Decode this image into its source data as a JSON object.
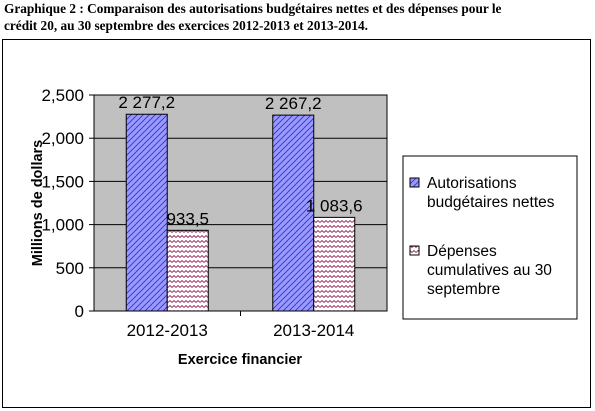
{
  "caption": {
    "line1": "Graphique 2 : Comparaison des autorisations budgétaires nettes et des dépenses pour le",
    "line2": "crédit 20, au 30 septembre des exercices 2012-2013 et 2013-2014."
  },
  "colors": {
    "plot_bg": "#c0c0c0",
    "series1_fill": "#9999ff",
    "series1_hatch": "#3333cc",
    "series2_fill": "#ffffff",
    "series2_hatch": "#993366"
  },
  "chart_data": {
    "type": "bar",
    "categories": [
      "2012-2013",
      "2013-2014"
    ],
    "series": [
      {
        "name": "Autorisations budgétaires nettes",
        "values": [
          2277.2,
          2267.2
        ],
        "labels": [
          "2 277,2",
          "2 267,2"
        ]
      },
      {
        "name": "Dépenses cumulatives au 30 septembre",
        "values": [
          933.5,
          1083.6
        ],
        "labels": [
          "933,5",
          "1 083,6"
        ]
      }
    ],
    "ylim": [
      0,
      2500
    ],
    "yticks": [
      {
        "value": 0,
        "label": "0"
      },
      {
        "value": 500,
        "label": "500"
      },
      {
        "value": 1000,
        "label": "1,000"
      },
      {
        "value": 1500,
        "label": "1,500"
      },
      {
        "value": 2000,
        "label": "2,000"
      },
      {
        "value": 2500,
        "label": "2,500"
      }
    ],
    "xlabel": "Exercice financier",
    "ylabel": "Millions de dollars",
    "grid": true,
    "legend_position": "right",
    "legend": [
      {
        "lines": [
          "Autorisations",
          "budgétaires nettes"
        ]
      },
      {
        "lines": [
          "Dépenses",
          "cumulatives au 30",
          "septembre"
        ]
      }
    ]
  }
}
